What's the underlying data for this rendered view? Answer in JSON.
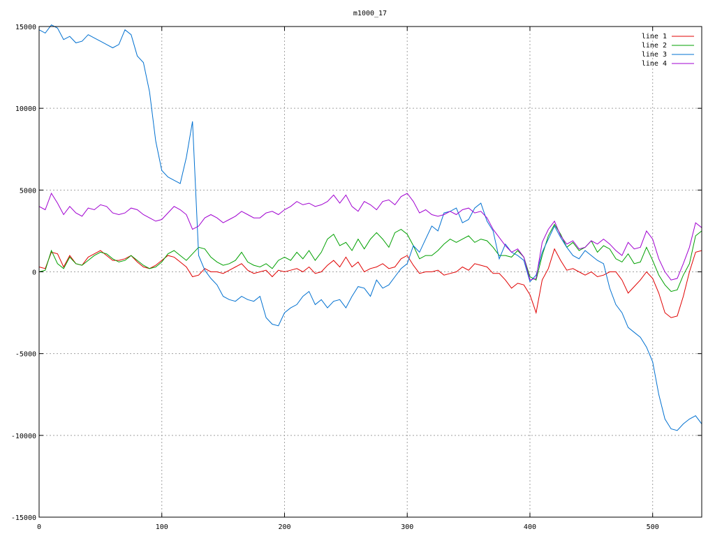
{
  "chart_data": {
    "type": "line",
    "title": "m1000_17",
    "xlabel": "",
    "ylabel": "",
    "xlim": [
      0,
      540
    ],
    "ylim": [
      -15000,
      15000
    ],
    "x_ticks": [
      0,
      100,
      200,
      300,
      400,
      500
    ],
    "y_ticks": [
      -15000,
      -10000,
      -5000,
      0,
      5000,
      10000,
      15000
    ],
    "grid": true,
    "legend_position": "top-right",
    "x": [
      0,
      5,
      10,
      15,
      20,
      25,
      30,
      35,
      40,
      45,
      50,
      55,
      60,
      65,
      70,
      75,
      80,
      85,
      90,
      95,
      100,
      105,
      110,
      115,
      120,
      125,
      130,
      135,
      140,
      145,
      150,
      155,
      160,
      165,
      170,
      175,
      180,
      185,
      190,
      195,
      200,
      205,
      210,
      215,
      220,
      225,
      230,
      235,
      240,
      245,
      250,
      255,
      260,
      265,
      270,
      275,
      280,
      285,
      290,
      295,
      300,
      305,
      310,
      315,
      320,
      325,
      330,
      335,
      340,
      345,
      350,
      355,
      360,
      365,
      370,
      375,
      380,
      385,
      390,
      395,
      400,
      405,
      410,
      415,
      420,
      425,
      430,
      435,
      440,
      445,
      450,
      455,
      460,
      465,
      470,
      475,
      480,
      485,
      490,
      495,
      500,
      505,
      510,
      515,
      520,
      525,
      530,
      535,
      540
    ],
    "series": [
      {
        "name": "line 1",
        "color": "#e00000",
        "values": [
          300,
          200,
          1200,
          1100,
          300,
          1000,
          500,
          400,
          900,
          1100,
          1300,
          1000,
          700,
          700,
          800,
          1000,
          600,
          300,
          200,
          400,
          700,
          1000,
          900,
          600,
          300,
          -300,
          -200,
          200,
          0,
          0,
          -100,
          100,
          300,
          500,
          100,
          -100,
          0,
          100,
          -300,
          100,
          0,
          100,
          200,
          0,
          300,
          -100,
          0,
          400,
          700,
          300,
          900,
          300,
          600,
          0,
          200,
          300,
          500,
          200,
          300,
          800,
          1000,
          400,
          -100,
          0,
          0,
          100,
          -200,
          -100,
          0,
          300,
          100,
          500,
          400,
          300,
          -100,
          -100,
          -500,
          -1000,
          -700,
          -800,
          -1400,
          -2500,
          -500,
          200,
          1400,
          700,
          100,
          200,
          0,
          -200,
          0,
          -300,
          -200,
          0,
          0,
          -500,
          -1300,
          -900,
          -500,
          0,
          -400,
          -1300,
          -2500,
          -2800,
          -2700,
          -1500,
          0,
          1200,
          1300
        ]
      },
      {
        "name": "line 2",
        "color": "#00a000",
        "values": [
          0,
          100,
          1300,
          500,
          200,
          900,
          500,
          400,
          700,
          1000,
          1200,
          1100,
          800,
          600,
          700,
          1000,
          700,
          400,
          200,
          300,
          600,
          1100,
          1300,
          1000,
          700,
          1100,
          1500,
          1400,
          900,
          600,
          400,
          500,
          700,
          1200,
          600,
          400,
          300,
          500,
          200,
          700,
          900,
          700,
          1200,
          800,
          1300,
          700,
          1200,
          2000,
          2300,
          1600,
          1800,
          1300,
          2000,
          1400,
          2000,
          2400,
          2000,
          1500,
          2400,
          2600,
          2300,
          1600,
          800,
          1000,
          1000,
          1300,
          1700,
          2000,
          1800,
          2000,
          2200,
          1800,
          2000,
          1900,
          1500,
          1000,
          1000,
          900,
          1300,
          900,
          -300,
          -500,
          1000,
          2200,
          2900,
          2300,
          1500,
          1800,
          1300,
          1500,
          1900,
          1200,
          1600,
          1400,
          800,
          600,
          1100,
          500,
          600,
          1500,
          700,
          -200,
          -800,
          -1200,
          -1100,
          -200,
          500,
          2200,
          2500
        ]
      },
      {
        "name": "line 3",
        "color": "#0070d0",
        "values": [
          14800,
          14600,
          15100,
          14900,
          14200,
          14400,
          14000,
          14100,
          14500,
          14300,
          14100,
          13900,
          13700,
          13900,
          14800,
          14500,
          13200,
          12800,
          11000,
          8000,
          6200,
          5800,
          5600,
          5400,
          7000,
          9200,
          1000,
          100,
          -400,
          -800,
          -1500,
          -1700,
          -1800,
          -1500,
          -1700,
          -1800,
          -1500,
          -2800,
          -3200,
          -3300,
          -2500,
          -2200,
          -2000,
          -1500,
          -1200,
          -2000,
          -1700,
          -2200,
          -1800,
          -1700,
          -2200,
          -1500,
          -900,
          -1000,
          -1500,
          -500,
          -1000,
          -800,
          -300,
          200,
          500,
          1600,
          1200,
          2000,
          2800,
          2500,
          3600,
          3700,
          3900,
          3000,
          3200,
          3900,
          4200,
          3100,
          2500,
          800,
          1700,
          1200,
          1000,
          700,
          -600,
          -200,
          1200,
          2000,
          2800,
          2100,
          1500,
          1000,
          800,
          1300,
          1000,
          700,
          500,
          -1000,
          -2000,
          -2500,
          -3400,
          -3700,
          -4000,
          -4600,
          -5500,
          -7500,
          -9000,
          -9600,
          -9700,
          -9300,
          -9000,
          -8800,
          -9300
        ]
      },
      {
        "name": "line 4",
        "color": "#a000d0",
        "values": [
          4000,
          3800,
          4800,
          4200,
          3500,
          4000,
          3600,
          3400,
          3900,
          3800,
          4100,
          4000,
          3600,
          3500,
          3600,
          3900,
          3800,
          3500,
          3300,
          3100,
          3200,
          3600,
          4000,
          3800,
          3500,
          2600,
          2800,
          3300,
          3500,
          3300,
          3000,
          3200,
          3400,
          3700,
          3500,
          3300,
          3300,
          3600,
          3700,
          3500,
          3800,
          4000,
          4300,
          4100,
          4200,
          4000,
          4100,
          4300,
          4700,
          4200,
          4700,
          4000,
          3700,
          4300,
          4100,
          3800,
          4300,
          4400,
          4100,
          4600,
          4800,
          4300,
          3600,
          3800,
          3500,
          3400,
          3500,
          3700,
          3500,
          3800,
          3900,
          3600,
          3700,
          3300,
          2600,
          2100,
          1600,
          1200,
          1400,
          900,
          -500,
          -400,
          1800,
          2600,
          3100,
          2200,
          1700,
          1900,
          1400,
          1500,
          1900,
          1700,
          2000,
          1700,
          1300,
          1000,
          1800,
          1400,
          1500,
          2500,
          2000,
          800,
          0,
          -500,
          -400,
          500,
          1500,
          3000,
          2700
        ]
      }
    ]
  }
}
